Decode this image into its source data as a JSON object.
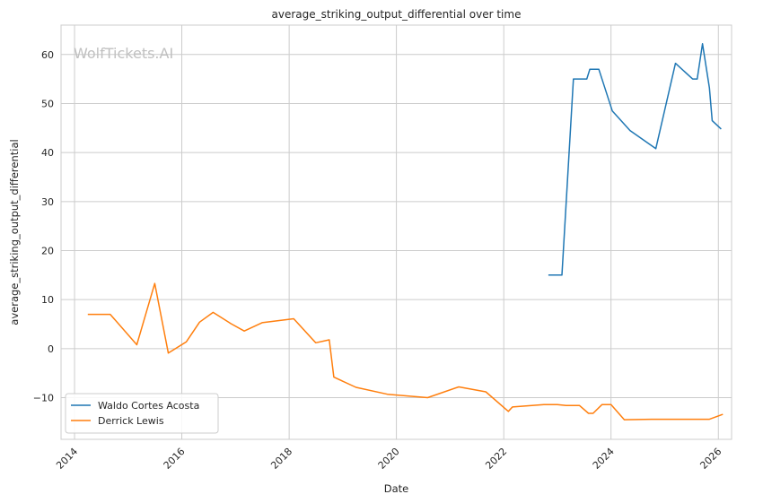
{
  "chart_data": {
    "type": "line",
    "title": "average_striking_output_differential over time",
    "xlabel": "Date",
    "ylabel": "average_striking_output_differential",
    "watermark": "WolfTickets.AI",
    "xlim": [
      "2013-10-01",
      "2026-04-01"
    ],
    "ylim": [
      -18.5,
      66
    ],
    "x_ticks": [
      "2014-01-01",
      "2016-01-01",
      "2018-01-01",
      "2020-01-01",
      "2022-01-01",
      "2024-01-01",
      "2026-01-01"
    ],
    "x_tick_labels": [
      "2014",
      "2016",
      "2018",
      "2020",
      "2022",
      "2024",
      "2026"
    ],
    "y_ticks": [
      -10,
      0,
      10,
      20,
      30,
      40,
      50,
      60
    ],
    "y_tick_labels": [
      "−10",
      "0",
      "10",
      "20",
      "30",
      "40",
      "50",
      "60"
    ],
    "grid": true,
    "legend_position": "lower-left",
    "series": [
      {
        "name": "Waldo Cortes Acosta",
        "color": "#1f77b4",
        "points": [
          [
            "2022-11-01",
            15.0
          ],
          [
            "2023-02-01",
            15.0
          ],
          [
            "2023-04-20",
            55.0
          ],
          [
            "2023-07-20",
            55.0
          ],
          [
            "2023-08-10",
            57.0
          ],
          [
            "2023-10-10",
            57.0
          ],
          [
            "2024-01-10",
            48.5
          ],
          [
            "2024-05-10",
            44.5
          ],
          [
            "2024-11-01",
            40.8
          ],
          [
            "2025-03-15",
            58.2
          ],
          [
            "2025-07-10",
            55.0
          ],
          [
            "2025-08-10",
            55.0
          ],
          [
            "2025-09-15",
            62.2
          ],
          [
            "2025-11-01",
            53.2
          ],
          [
            "2025-11-20",
            46.5
          ],
          [
            "2026-01-20",
            44.8
          ]
        ]
      },
      {
        "name": "Derrick Lewis",
        "color": "#ff7f0e",
        "points": [
          [
            "2014-04-01",
            7.0
          ],
          [
            "2014-09-01",
            7.0
          ],
          [
            "2015-03-01",
            0.8
          ],
          [
            "2015-07-01",
            13.3
          ],
          [
            "2015-10-01",
            -0.9
          ],
          [
            "2016-02-01",
            1.4
          ],
          [
            "2016-05-01",
            5.4
          ],
          [
            "2016-08-01",
            7.4
          ],
          [
            "2016-12-01",
            5.1
          ],
          [
            "2017-03-01",
            3.6
          ],
          [
            "2017-07-01",
            5.3
          ],
          [
            "2018-02-01",
            6.1
          ],
          [
            "2018-07-01",
            1.2
          ],
          [
            "2018-10-01",
            1.8
          ],
          [
            "2018-11-01",
            -5.8
          ],
          [
            "2019-04-01",
            -7.9
          ],
          [
            "2019-11-01",
            -9.3
          ],
          [
            "2020-08-01",
            -10.0
          ],
          [
            "2021-03-01",
            -7.8
          ],
          [
            "2021-09-01",
            -8.8
          ],
          [
            "2022-02-01",
            -12.8
          ],
          [
            "2022-03-01",
            -11.9
          ],
          [
            "2022-10-01",
            -11.4
          ],
          [
            "2023-01-01",
            -11.4
          ],
          [
            "2023-03-01",
            -11.6
          ],
          [
            "2023-06-01",
            -11.6
          ],
          [
            "2023-08-01",
            -13.2
          ],
          [
            "2023-09-01",
            -13.2
          ],
          [
            "2023-11-01",
            -11.4
          ],
          [
            "2024-01-01",
            -11.4
          ],
          [
            "2024-04-01",
            -14.5
          ],
          [
            "2024-10-01",
            -14.4
          ],
          [
            "2025-06-01",
            -14.4
          ],
          [
            "2025-11-01",
            -14.4
          ],
          [
            "2026-02-01",
            -13.4
          ]
        ]
      }
    ]
  }
}
